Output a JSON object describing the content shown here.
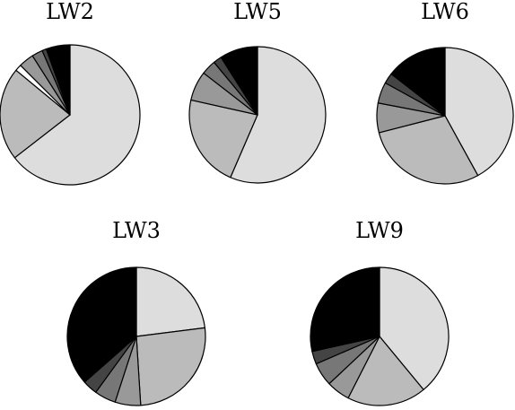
{
  "chart_data": [
    {
      "type": "pie",
      "title": "LW2",
      "start_angle": "12 o'clock",
      "direction": "clockwise",
      "slices": [
        {
          "value": 64.5,
          "color": "#dddddd"
        },
        {
          "value": 21.5,
          "color": "#bbbbbb"
        },
        {
          "value": 1.5,
          "color": "#ffffff"
        },
        {
          "value": 3.5,
          "color": "#999999"
        },
        {
          "value": 2.5,
          "color": "#777777"
        },
        {
          "value": 1.0,
          "color": "#444444"
        },
        {
          "value": 5.5,
          "color": "#000000"
        }
      ]
    },
    {
      "type": "pie",
      "title": "LW5",
      "start_angle": "12 o'clock",
      "direction": "clockwise",
      "slices": [
        {
          "value": 56.5,
          "color": "#dddddd"
        },
        {
          "value": 22.0,
          "color": "#bbbbbb"
        },
        {
          "value": 7.0,
          "color": "#999999"
        },
        {
          "value": 3.5,
          "color": "#777777"
        },
        {
          "value": 2.0,
          "color": "#444444"
        },
        {
          "value": 9.0,
          "color": "#000000"
        }
      ]
    },
    {
      "type": "pie",
      "title": "LW6",
      "start_angle": "12 o'clock",
      "direction": "clockwise",
      "slices": [
        {
          "value": 42.0,
          "color": "#dddddd"
        },
        {
          "value": 29.0,
          "color": "#bbbbbb"
        },
        {
          "value": 7.0,
          "color": "#999999"
        },
        {
          "value": 5.0,
          "color": "#777777"
        },
        {
          "value": 2.5,
          "color": "#444444"
        },
        {
          "value": 14.5,
          "color": "#000000"
        }
      ]
    },
    {
      "type": "pie",
      "title": "LW3",
      "start_angle": "12 o'clock",
      "direction": "clockwise",
      "slices": [
        {
          "value": 23.0,
          "color": "#dddddd"
        },
        {
          "value": 26.0,
          "color": "#bbbbbb"
        },
        {
          "value": 6.0,
          "color": "#999999"
        },
        {
          "value": 5.0,
          "color": "#777777"
        },
        {
          "value": 3.5,
          "color": "#444444"
        },
        {
          "value": 36.5,
          "color": "#000000"
        }
      ]
    },
    {
      "type": "pie",
      "title": "LW9",
      "start_angle": "12 o'clock",
      "direction": "clockwise",
      "slices": [
        {
          "value": 39.0,
          "color": "#dddddd"
        },
        {
          "value": 18.5,
          "color": "#bbbbbb"
        },
        {
          "value": 5.5,
          "color": "#999999"
        },
        {
          "value": 5.5,
          "color": "#777777"
        },
        {
          "value": 3.0,
          "color": "#444444"
        },
        {
          "value": 28.5,
          "color": "#000000"
        }
      ]
    }
  ]
}
